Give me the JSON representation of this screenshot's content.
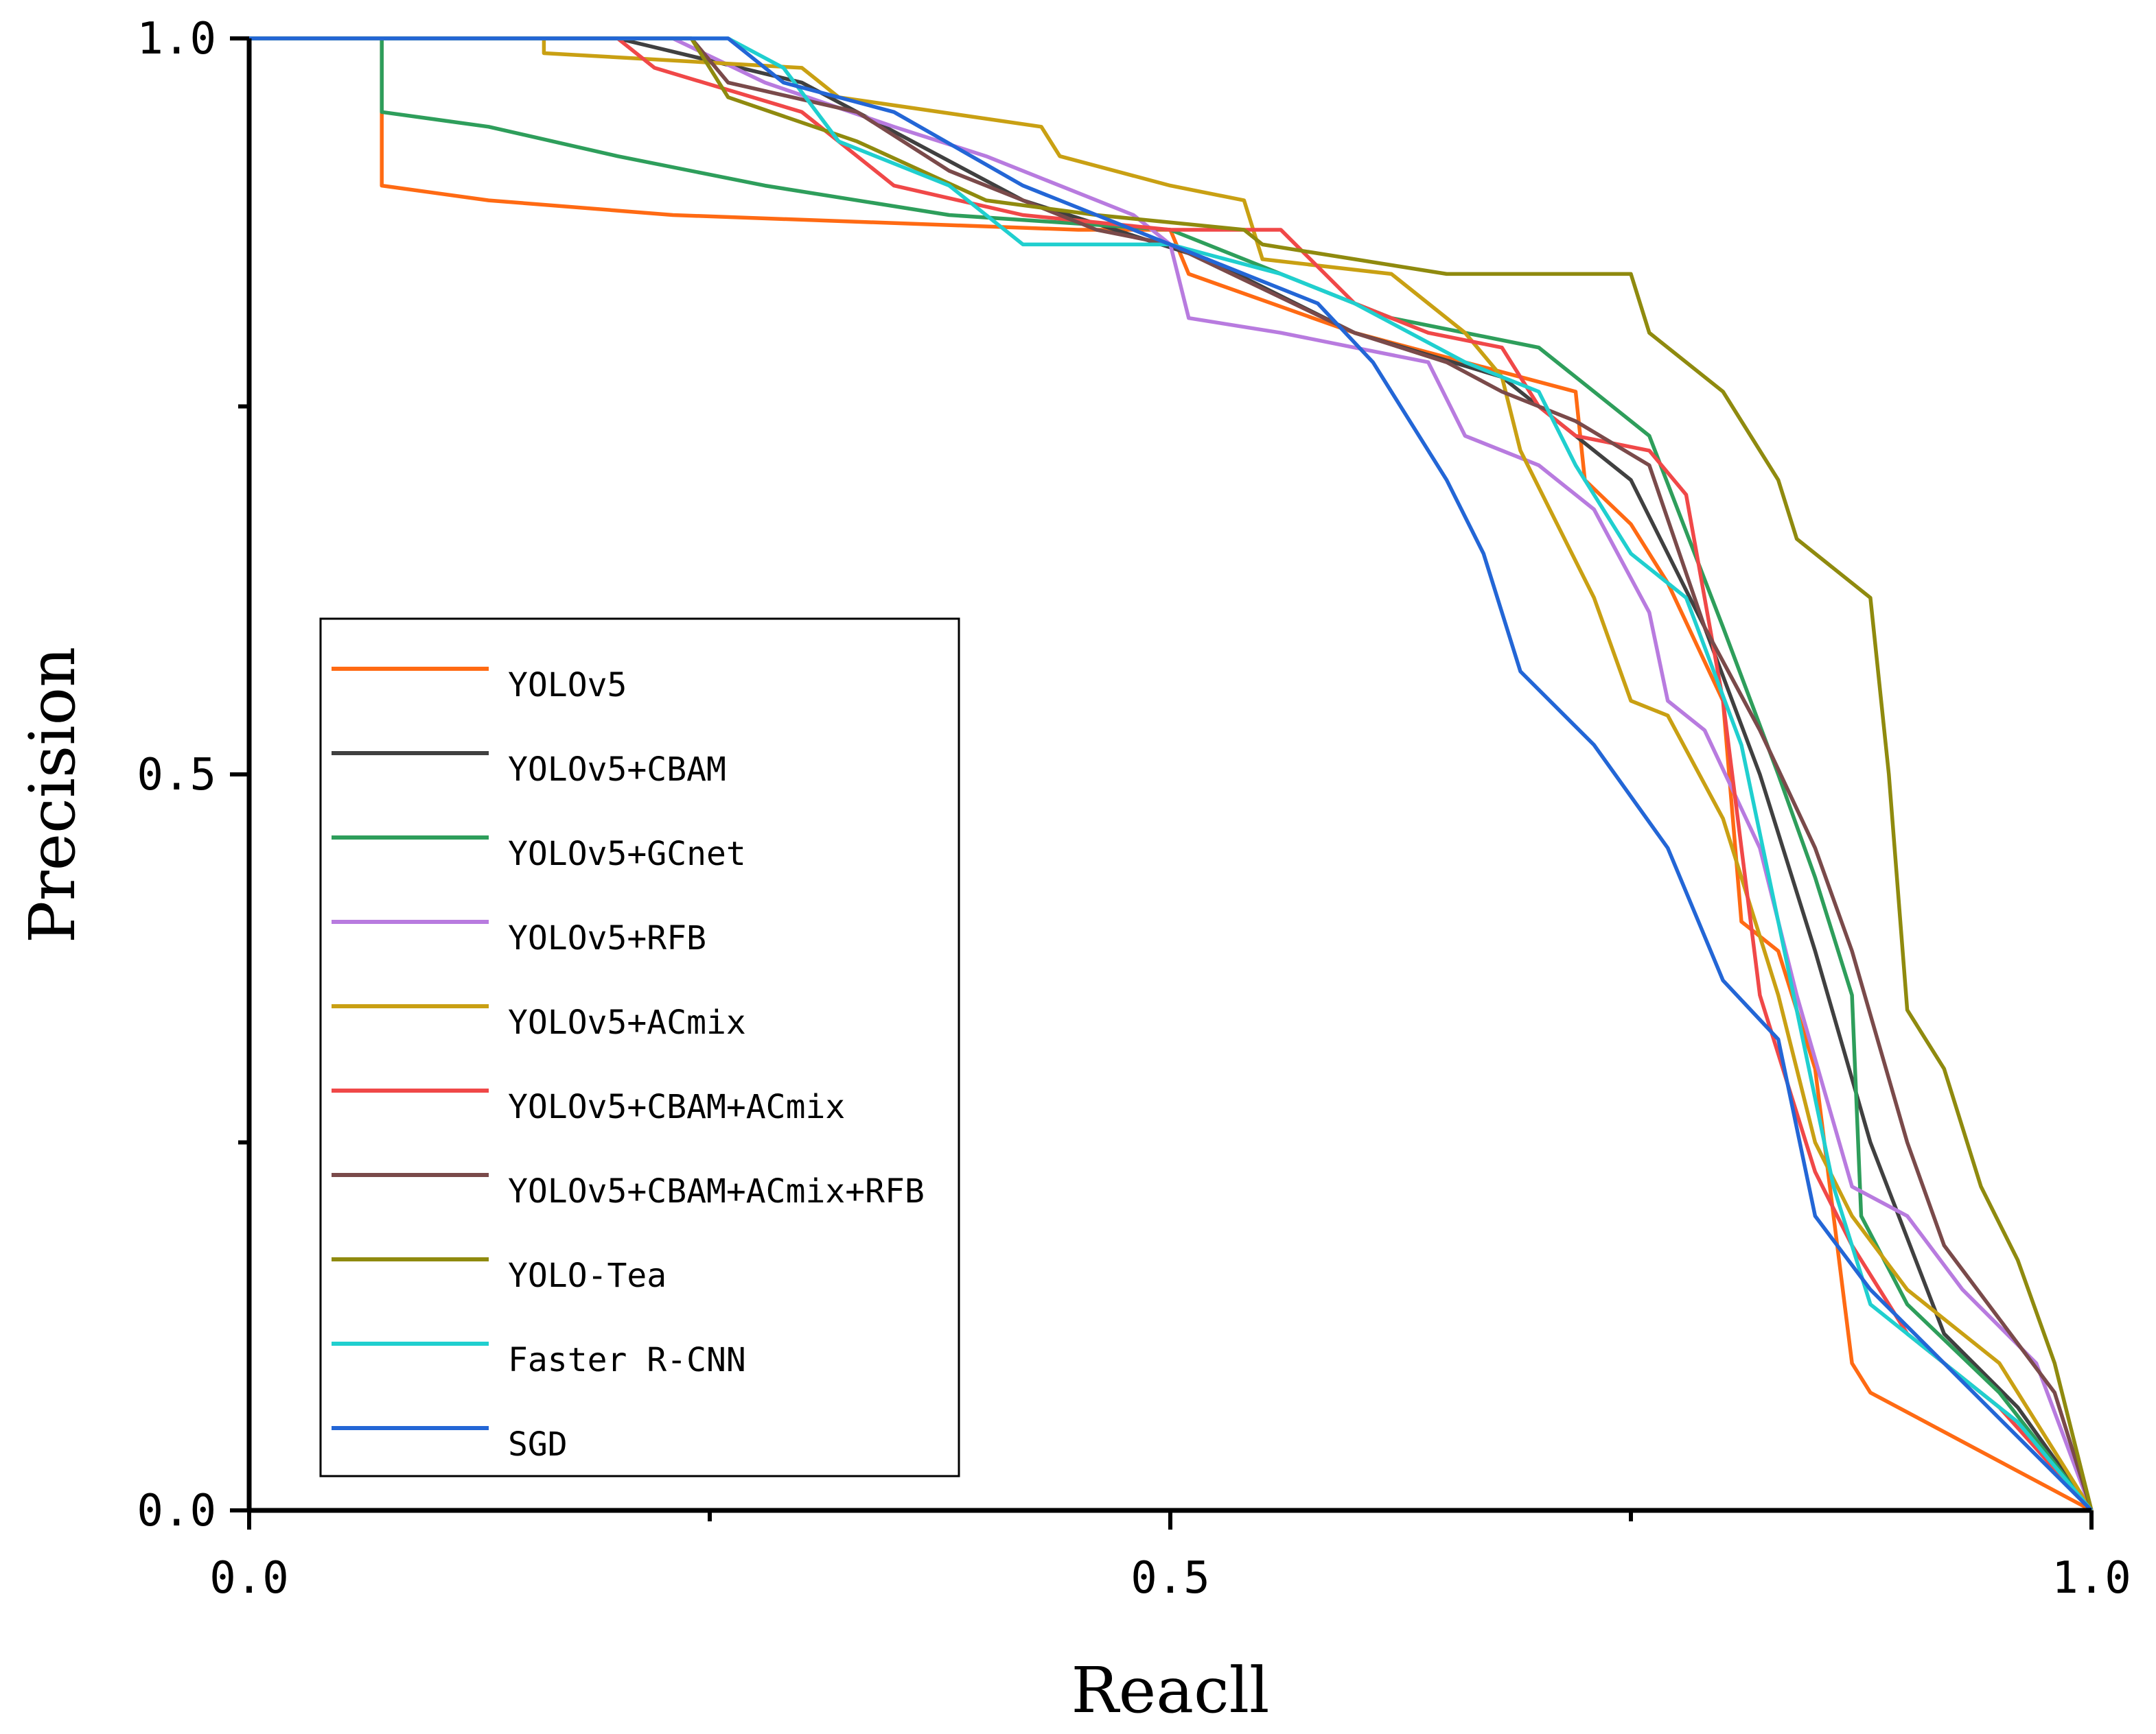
{
  "chart_data": {
    "type": "line",
    "title": "",
    "xlabel": "Reacll",
    "ylabel": "Precision",
    "xlim": [
      0,
      1
    ],
    "ylim": [
      0,
      1
    ],
    "x_ticks": [
      "0.0",
      "0.5",
      "1.0"
    ],
    "y_ticks": [
      "0.0",
      "0.5",
      "1.0"
    ],
    "grid": false,
    "legend_position": "center-left",
    "series": [
      {
        "name": "YOLOv5",
        "color": "#ff6a13",
        "points": [
          [
            0,
            1
          ],
          [
            0.072,
            1
          ],
          [
            0.072,
            0.9
          ],
          [
            0.13,
            0.89
          ],
          [
            0.23,
            0.88
          ],
          [
            0.45,
            0.87
          ],
          [
            0.5,
            0.87
          ],
          [
            0.51,
            0.84
          ],
          [
            0.6,
            0.8
          ],
          [
            0.66,
            0.78
          ],
          [
            0.72,
            0.76
          ],
          [
            0.725,
            0.7
          ],
          [
            0.75,
            0.67
          ],
          [
            0.77,
            0.63
          ],
          [
            0.8,
            0.55
          ],
          [
            0.81,
            0.4
          ],
          [
            0.83,
            0.38
          ],
          [
            0.85,
            0.3
          ],
          [
            0.87,
            0.1
          ],
          [
            0.88,
            0.08
          ],
          [
            1,
            0
          ]
        ]
      },
      {
        "name": "YOLOv5+CBAM",
        "color": "#404040",
        "points": [
          [
            0,
            1
          ],
          [
            0.2,
            1
          ],
          [
            0.3,
            0.97
          ],
          [
            0.42,
            0.89
          ],
          [
            0.52,
            0.85
          ],
          [
            0.6,
            0.8
          ],
          [
            0.68,
            0.77
          ],
          [
            0.75,
            0.7
          ],
          [
            0.79,
            0.6
          ],
          [
            0.82,
            0.5
          ],
          [
            0.85,
            0.38
          ],
          [
            0.88,
            0.25
          ],
          [
            0.92,
            0.12
          ],
          [
            0.96,
            0.07
          ],
          [
            1,
            0
          ]
        ]
      },
      {
        "name": "YOLOv5+GCnet",
        "color": "#2e9e5b",
        "points": [
          [
            0,
            1
          ],
          [
            0.072,
            1
          ],
          [
            0.072,
            0.95
          ],
          [
            0.13,
            0.94
          ],
          [
            0.2,
            0.92
          ],
          [
            0.28,
            0.9
          ],
          [
            0.38,
            0.88
          ],
          [
            0.5,
            0.87
          ],
          [
            0.58,
            0.83
          ],
          [
            0.62,
            0.81
          ],
          [
            0.7,
            0.79
          ],
          [
            0.73,
            0.76
          ],
          [
            0.76,
            0.73
          ],
          [
            0.8,
            0.6
          ],
          [
            0.83,
            0.5
          ],
          [
            0.85,
            0.43
          ],
          [
            0.87,
            0.35
          ],
          [
            0.875,
            0.2
          ],
          [
            0.9,
            0.14
          ],
          [
            0.95,
            0.08
          ],
          [
            1,
            0
          ]
        ]
      },
      {
        "name": "YOLOv5+RFB",
        "color": "#b87bdf",
        "points": [
          [
            0,
            1
          ],
          [
            0.23,
            1
          ],
          [
            0.28,
            0.97
          ],
          [
            0.35,
            0.94
          ],
          [
            0.4,
            0.92
          ],
          [
            0.48,
            0.88
          ],
          [
            0.5,
            0.86
          ],
          [
            0.51,
            0.81
          ],
          [
            0.56,
            0.8
          ],
          [
            0.6,
            0.79
          ],
          [
            0.64,
            0.78
          ],
          [
            0.66,
            0.73
          ],
          [
            0.7,
            0.71
          ],
          [
            0.73,
            0.68
          ],
          [
            0.76,
            0.61
          ],
          [
            0.77,
            0.55
          ],
          [
            0.79,
            0.53
          ],
          [
            0.82,
            0.45
          ],
          [
            0.84,
            0.35
          ],
          [
            0.87,
            0.22
          ],
          [
            0.9,
            0.2
          ],
          [
            0.93,
            0.15
          ],
          [
            0.97,
            0.1
          ],
          [
            1,
            0
          ]
        ]
      },
      {
        "name": "YOLOv5+ACmix",
        "color": "#c9a013",
        "points": [
          [
            0,
            1
          ],
          [
            0.16,
            1
          ],
          [
            0.16,
            0.99
          ],
          [
            0.3,
            0.98
          ],
          [
            0.32,
            0.96
          ],
          [
            0.43,
            0.94
          ],
          [
            0.44,
            0.92
          ],
          [
            0.5,
            0.9
          ],
          [
            0.54,
            0.89
          ],
          [
            0.55,
            0.85
          ],
          [
            0.62,
            0.84
          ],
          [
            0.66,
            0.8
          ],
          [
            0.68,
            0.77
          ],
          [
            0.69,
            0.72
          ],
          [
            0.71,
            0.67
          ],
          [
            0.73,
            0.62
          ],
          [
            0.75,
            0.55
          ],
          [
            0.77,
            0.54
          ],
          [
            0.8,
            0.47
          ],
          [
            0.83,
            0.35
          ],
          [
            0.85,
            0.25
          ],
          [
            0.87,
            0.2
          ],
          [
            0.9,
            0.15
          ],
          [
            0.95,
            0.1
          ],
          [
            1,
            0
          ]
        ]
      },
      {
        "name": "YOLOv5+CBAM+ACmix",
        "color": "#f04848",
        "points": [
          [
            0,
            1
          ],
          [
            0.2,
            1
          ],
          [
            0.22,
            0.98
          ],
          [
            0.3,
            0.95
          ],
          [
            0.35,
            0.9
          ],
          [
            0.42,
            0.88
          ],
          [
            0.5,
            0.87
          ],
          [
            0.56,
            0.87
          ],
          [
            0.6,
            0.82
          ],
          [
            0.64,
            0.8
          ],
          [
            0.68,
            0.79
          ],
          [
            0.7,
            0.75
          ],
          [
            0.72,
            0.73
          ],
          [
            0.76,
            0.72
          ],
          [
            0.78,
            0.69
          ],
          [
            0.8,
            0.55
          ],
          [
            0.82,
            0.35
          ],
          [
            0.85,
            0.23
          ],
          [
            0.87,
            0.18
          ],
          [
            0.9,
            0.12
          ],
          [
            0.95,
            0.07
          ],
          [
            1,
            0
          ]
        ]
      },
      {
        "name": "YOLOv5+CBAM+ACmix+RFB",
        "color": "#7a4a4a",
        "points": [
          [
            0,
            1
          ],
          [
            0.24,
            1
          ],
          [
            0.26,
            0.97
          ],
          [
            0.33,
            0.95
          ],
          [
            0.38,
            0.91
          ],
          [
            0.46,
            0.87
          ],
          [
            0.5,
            0.86
          ],
          [
            0.55,
            0.83
          ],
          [
            0.6,
            0.8
          ],
          [
            0.65,
            0.78
          ],
          [
            0.68,
            0.76
          ],
          [
            0.72,
            0.74
          ],
          [
            0.76,
            0.71
          ],
          [
            0.79,
            0.6
          ],
          [
            0.82,
            0.53
          ],
          [
            0.85,
            0.45
          ],
          [
            0.87,
            0.38
          ],
          [
            0.9,
            0.25
          ],
          [
            0.92,
            0.18
          ],
          [
            0.95,
            0.13
          ],
          [
            0.98,
            0.08
          ],
          [
            1,
            0
          ]
        ]
      },
      {
        "name": "YOLO-Tea",
        "color": "#8f8a0e",
        "points": [
          [
            0,
            1
          ],
          [
            0.24,
            1
          ],
          [
            0.26,
            0.96
          ],
          [
            0.33,
            0.93
          ],
          [
            0.4,
            0.89
          ],
          [
            0.46,
            0.88
          ],
          [
            0.54,
            0.87
          ],
          [
            0.55,
            0.86
          ],
          [
            0.6,
            0.85
          ],
          [
            0.65,
            0.84
          ],
          [
            0.75,
            0.84
          ],
          [
            0.76,
            0.8
          ],
          [
            0.8,
            0.76
          ],
          [
            0.83,
            0.7
          ],
          [
            0.84,
            0.66
          ],
          [
            0.88,
            0.62
          ],
          [
            0.89,
            0.5
          ],
          [
            0.9,
            0.34
          ],
          [
            0.92,
            0.3
          ],
          [
            0.94,
            0.22
          ],
          [
            0.96,
            0.17
          ],
          [
            0.98,
            0.1
          ],
          [
            1,
            0
          ]
        ]
      },
      {
        "name": "Faster R-CNN",
        "color": "#20cfcf",
        "points": [
          [
            0,
            1
          ],
          [
            0.26,
            1
          ],
          [
            0.29,
            0.98
          ],
          [
            0.32,
            0.93
          ],
          [
            0.38,
            0.9
          ],
          [
            0.42,
            0.86
          ],
          [
            0.5,
            0.86
          ],
          [
            0.56,
            0.84
          ],
          [
            0.6,
            0.82
          ],
          [
            0.66,
            0.78
          ],
          [
            0.7,
            0.76
          ],
          [
            0.72,
            0.71
          ],
          [
            0.75,
            0.65
          ],
          [
            0.78,
            0.62
          ],
          [
            0.81,
            0.52
          ],
          [
            0.83,
            0.4
          ],
          [
            0.86,
            0.22
          ],
          [
            0.88,
            0.14
          ],
          [
            0.92,
            0.1
          ],
          [
            0.96,
            0.06
          ],
          [
            1,
            0
          ]
        ]
      },
      {
        "name": "SGD",
        "color": "#2366d6",
        "points": [
          [
            0,
            1
          ],
          [
            0.26,
            1
          ],
          [
            0.29,
            0.97
          ],
          [
            0.35,
            0.95
          ],
          [
            0.42,
            0.9
          ],
          [
            0.48,
            0.87
          ],
          [
            0.5,
            0.86
          ],
          [
            0.54,
            0.84
          ],
          [
            0.58,
            0.82
          ],
          [
            0.61,
            0.78
          ],
          [
            0.65,
            0.7
          ],
          [
            0.67,
            0.65
          ],
          [
            0.69,
            0.57
          ],
          [
            0.73,
            0.52
          ],
          [
            0.77,
            0.45
          ],
          [
            0.8,
            0.36
          ],
          [
            0.83,
            0.32
          ],
          [
            0.85,
            0.2
          ],
          [
            0.88,
            0.15
          ],
          [
            0.92,
            0.1
          ],
          [
            0.96,
            0.05
          ],
          [
            1,
            0
          ]
        ]
      }
    ]
  }
}
